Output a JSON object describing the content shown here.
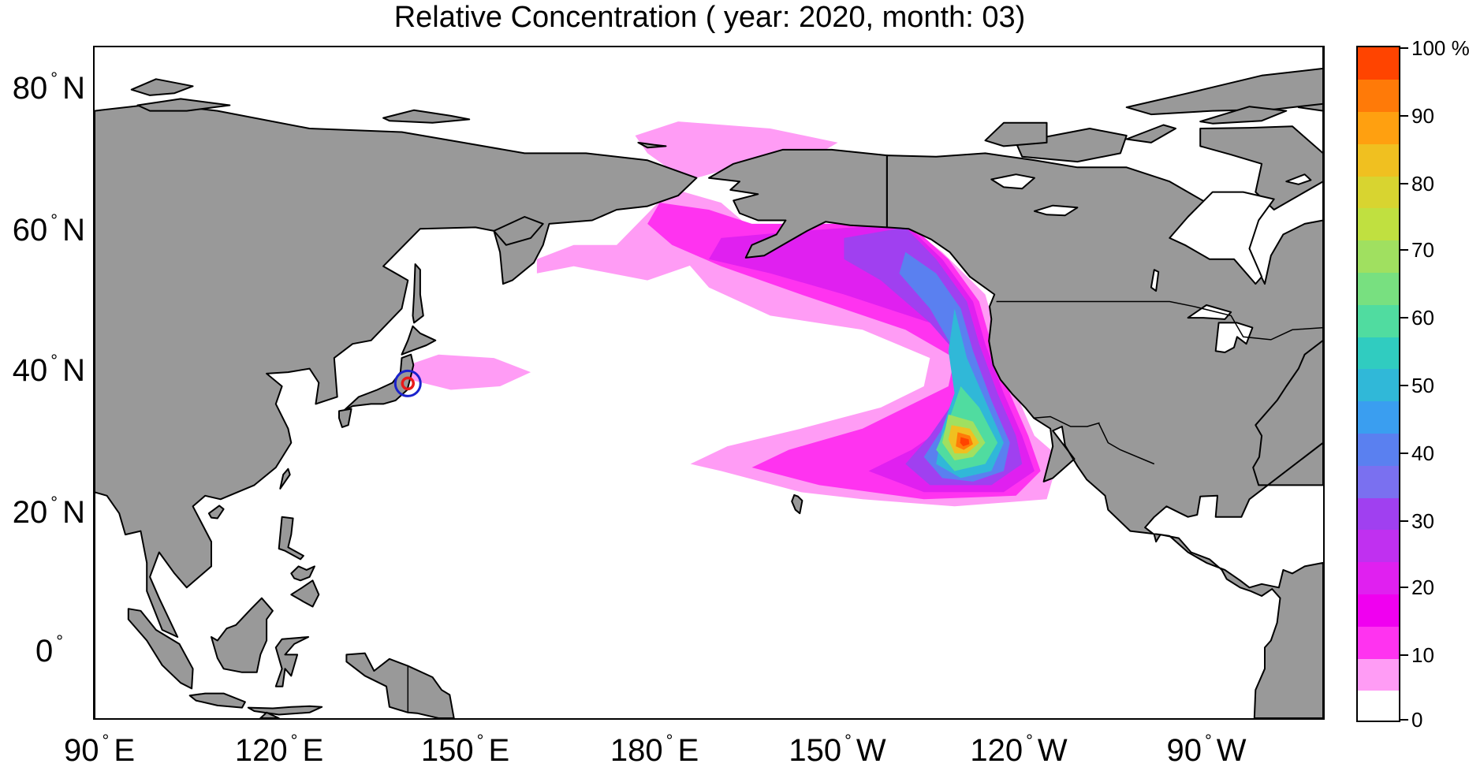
{
  "title": "Relative Concentration ( year: 2020, month: 03)",
  "map": {
    "projection": "equirectangular",
    "lon_range_east": [
      90,
      290
    ],
    "lat_range": [
      -10,
      85
    ],
    "land_color": "#999999",
    "ocean_color": "#ffffff",
    "coastline_color": "#000000",
    "source_marker": {
      "lon": 141.0,
      "lat": 37.4,
      "outer_color": "#1a22cc",
      "inner_color": "#e81a1a"
    }
  },
  "axes": {
    "y_ticks": [
      {
        "deg": "80",
        "hemi": "N"
      },
      {
        "deg": "60",
        "hemi": "N"
      },
      {
        "deg": "40",
        "hemi": "N"
      },
      {
        "deg": "20",
        "hemi": "N"
      },
      {
        "deg": "0",
        "hemi": ""
      }
    ],
    "x_ticks": [
      {
        "deg": "90",
        "hemi": "E"
      },
      {
        "deg": "120",
        "hemi": "E"
      },
      {
        "deg": "150",
        "hemi": "E"
      },
      {
        "deg": "180",
        "hemi": "E"
      },
      {
        "deg": "150",
        "hemi": "W"
      },
      {
        "deg": "120",
        "hemi": "W"
      },
      {
        "deg": "90",
        "hemi": "W"
      }
    ]
  },
  "colorbar": {
    "labels": [
      "0",
      "10",
      "20",
      "30",
      "40",
      "50",
      "60",
      "70",
      "80",
      "90",
      "100 %"
    ],
    "colors": [
      "#ffffff",
      "#ff9cf5",
      "#ff33f0",
      "#f000f0",
      "#e020f0",
      "#c030f0",
      "#a040f0",
      "#7a70f0",
      "#5a80f0",
      "#3a9ef0",
      "#30b8d8",
      "#30ccc0",
      "#50dca0",
      "#78e080",
      "#a0e060",
      "#c0e040",
      "#d8d430",
      "#f0c020",
      "#ffa010",
      "#ff7a08",
      "#ff4400"
    ]
  },
  "plume_levels": [
    {
      "level": 5,
      "color": "#ff9cf5"
    },
    {
      "level": 10,
      "color": "#ff33f0"
    },
    {
      "level": 20,
      "color": "#e020f0"
    },
    {
      "level": 30,
      "color": "#a040f0"
    },
    {
      "level": 40,
      "color": "#5a80f0"
    },
    {
      "level": 50,
      "color": "#30b8d8"
    },
    {
      "level": 60,
      "color": "#50dca0"
    },
    {
      "level": 70,
      "color": "#a0e060"
    },
    {
      "level": 80,
      "color": "#f0c020"
    },
    {
      "level": 90,
      "color": "#ff7a08"
    },
    {
      "level": 100,
      "color": "#ff4400"
    }
  ]
}
